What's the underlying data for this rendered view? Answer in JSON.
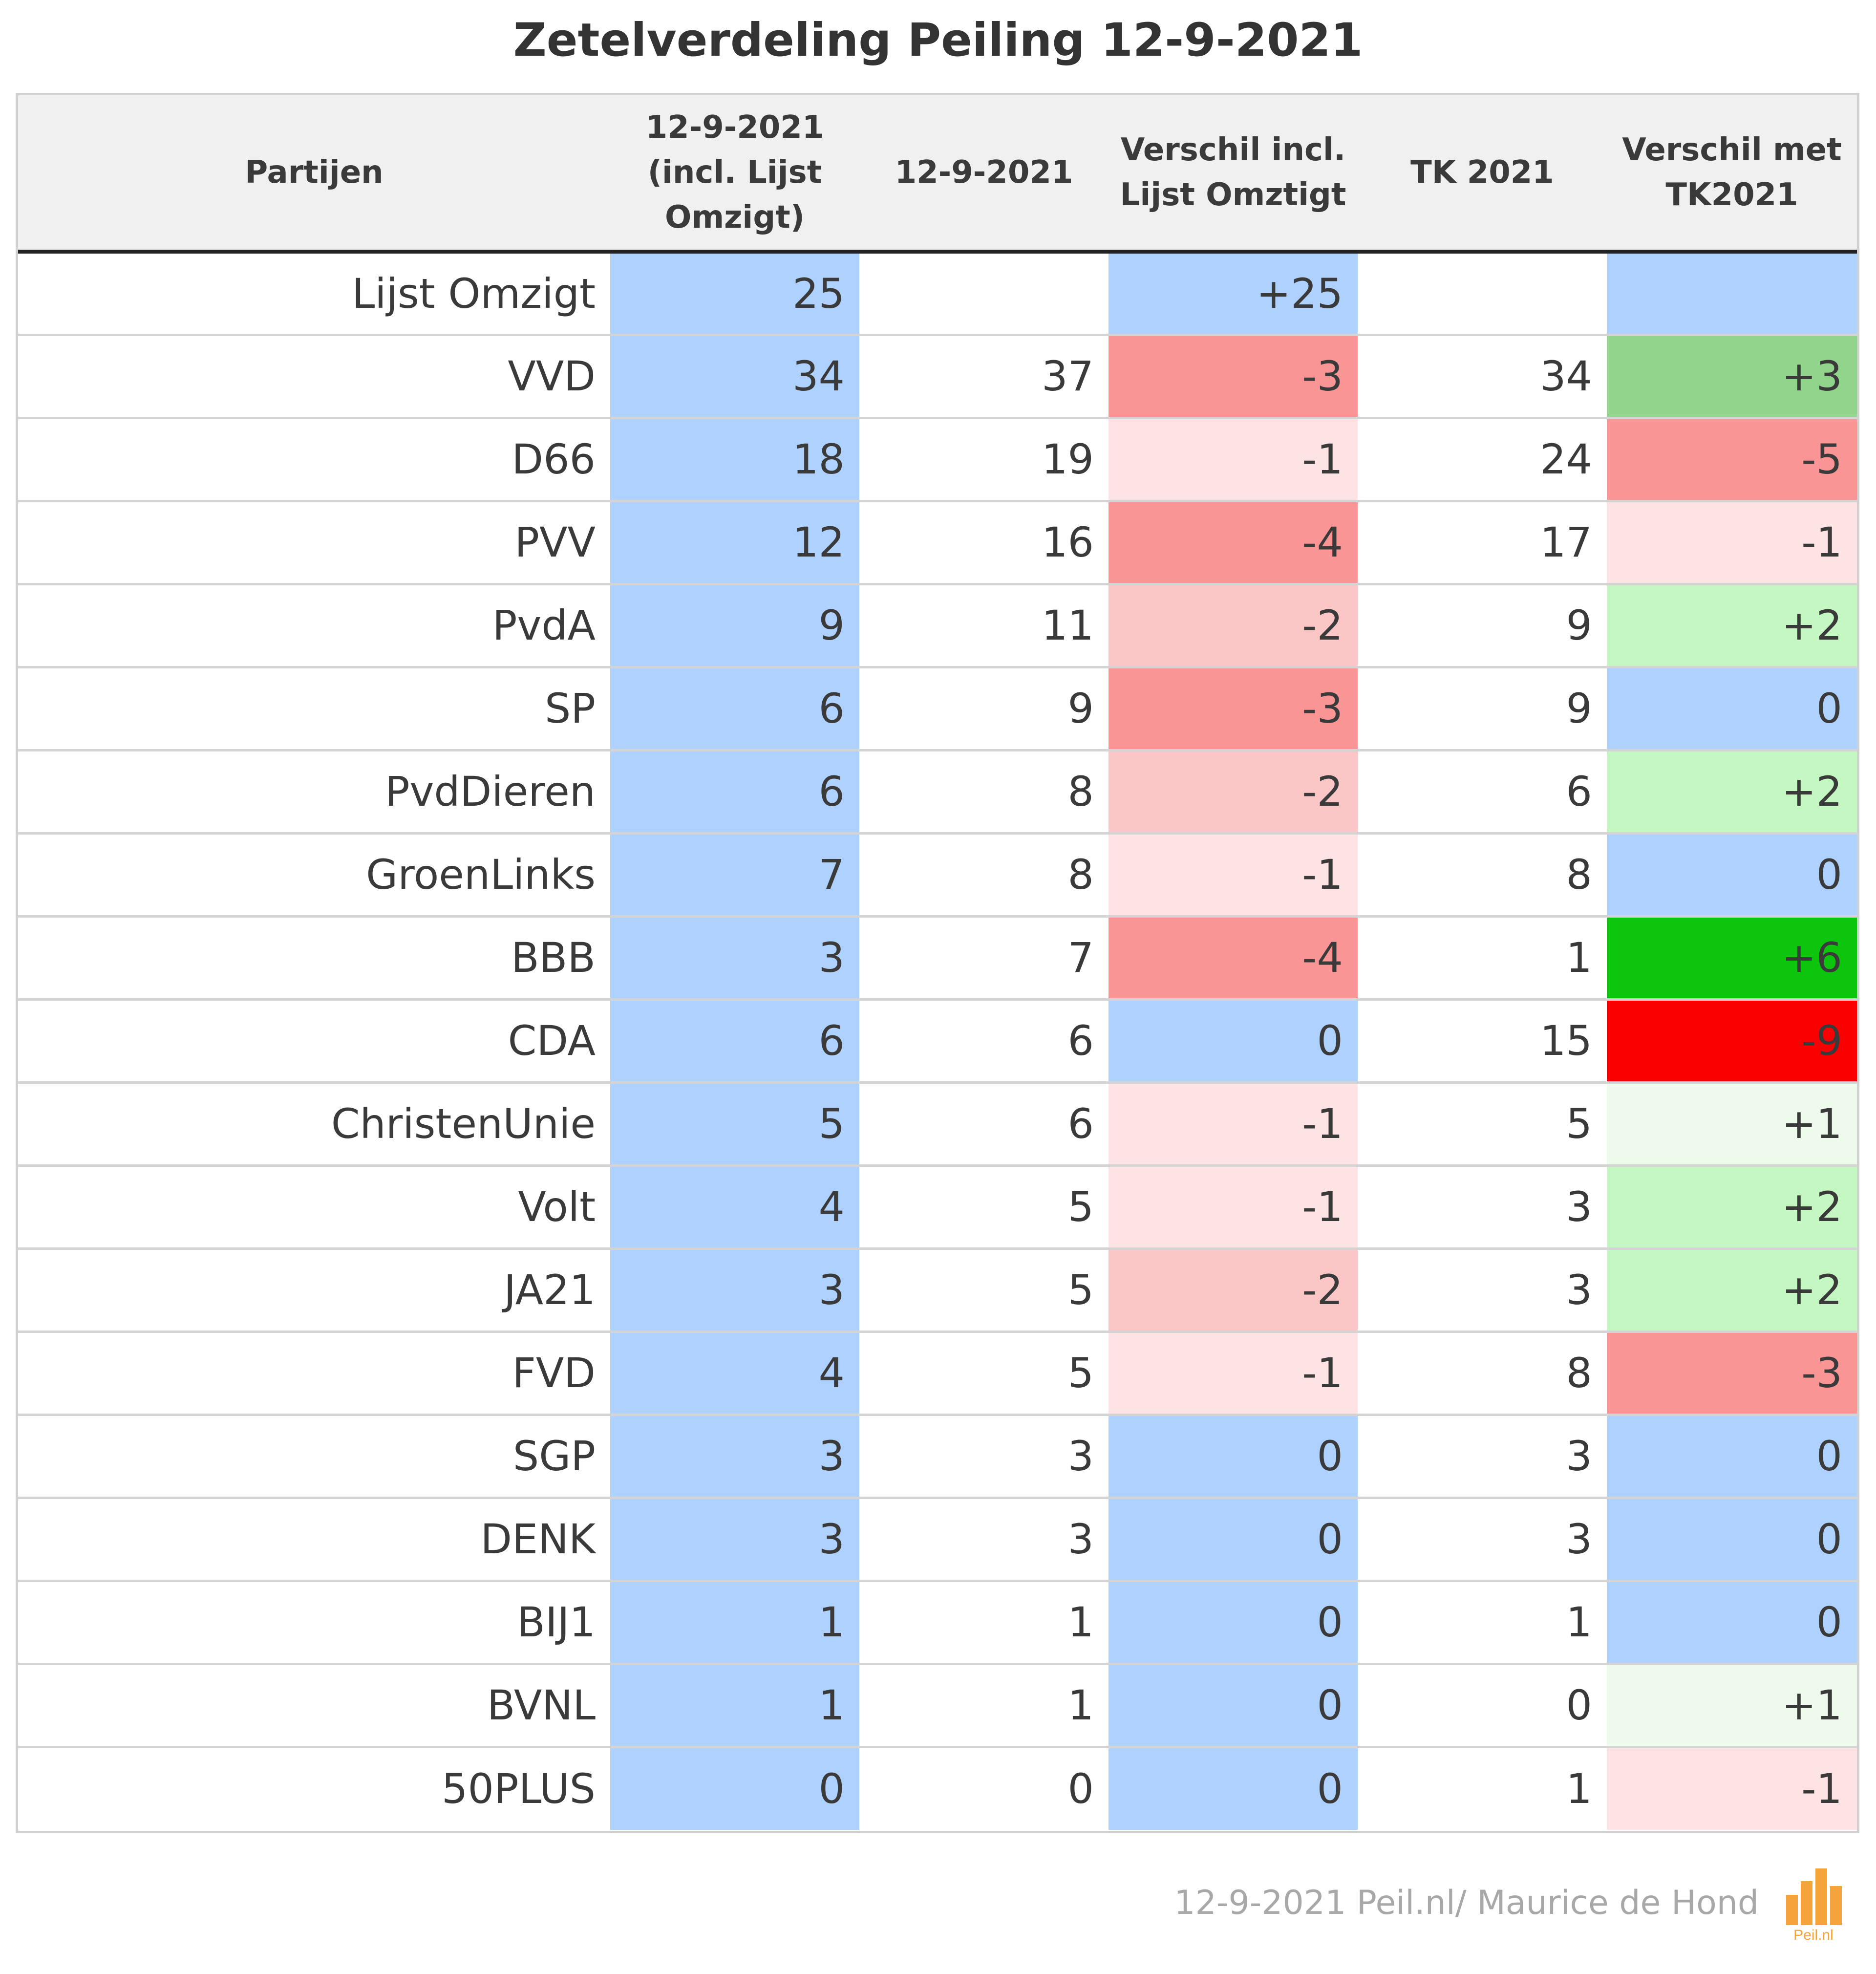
{
  "colors": {
    "blue": "#aed2fd",
    "red_light": "#fde3e3",
    "red_medium": "#fbc6c6",
    "red_strong": "#f99595",
    "red_full": "#fa0000",
    "green_light": "#edfaec",
    "green_medium": "#c5f7c2",
    "green_strong": "#91d48b",
    "green_full": "#0cc50c"
  },
  "chart_data": {
    "type": "table",
    "title": "Zetelverdeling Peiling 12-9-2021",
    "columns": [
      [
        "Partijen"
      ],
      [
        "12-9-2021",
        "(incl. Lijst",
        "Omzigt)"
      ],
      [
        "12-9-2021"
      ],
      [
        "Verschil incl.",
        "Lijst Omztigt"
      ],
      [
        "TK 2021"
      ],
      [
        "Verschil met",
        "TK2021"
      ]
    ],
    "rows": [
      {
        "party": "Lijst Omzigt",
        "incl": "25",
        "poll": "",
        "diff": "+25",
        "tk": "",
        "tkdiff": "",
        "diff_color": "blue",
        "tkdiff_color": "blue"
      },
      {
        "party": "VVD",
        "incl": "34",
        "poll": "37",
        "diff": "-3",
        "tk": "34",
        "tkdiff": "+3",
        "diff_color": "red_strong",
        "tkdiff_color": "green_strong"
      },
      {
        "party": "D66",
        "incl": "18",
        "poll": "19",
        "diff": "-1",
        "tk": "24",
        "tkdiff": "-5",
        "diff_color": "red_light",
        "tkdiff_color": "red_strong"
      },
      {
        "party": "PVV",
        "incl": "12",
        "poll": "16",
        "diff": "-4",
        "tk": "17",
        "tkdiff": "-1",
        "diff_color": "red_strong",
        "tkdiff_color": "red_light"
      },
      {
        "party": "PvdA",
        "incl": "9",
        "poll": "11",
        "diff": "-2",
        "tk": "9",
        "tkdiff": "+2",
        "diff_color": "red_medium",
        "tkdiff_color": "green_medium"
      },
      {
        "party": "SP",
        "incl": "6",
        "poll": "9",
        "diff": "-3",
        "tk": "9",
        "tkdiff": "0",
        "diff_color": "red_strong",
        "tkdiff_color": "blue"
      },
      {
        "party": "PvdDieren",
        "incl": "6",
        "poll": "8",
        "diff": "-2",
        "tk": "6",
        "tkdiff": "+2",
        "diff_color": "red_medium",
        "tkdiff_color": "green_medium"
      },
      {
        "party": "GroenLinks",
        "incl": "7",
        "poll": "8",
        "diff": "-1",
        "tk": "8",
        "tkdiff": "0",
        "diff_color": "red_light",
        "tkdiff_color": "blue"
      },
      {
        "party": "BBB",
        "incl": "3",
        "poll": "7",
        "diff": "-4",
        "tk": "1",
        "tkdiff": "+6",
        "diff_color": "red_strong",
        "tkdiff_color": "green_full"
      },
      {
        "party": "CDA",
        "incl": "6",
        "poll": "6",
        "diff": "0",
        "tk": "15",
        "tkdiff": "-9",
        "diff_color": "blue",
        "tkdiff_color": "red_full"
      },
      {
        "party": "ChristenUnie",
        "incl": "5",
        "poll": "6",
        "diff": "-1",
        "tk": "5",
        "tkdiff": "+1",
        "diff_color": "red_light",
        "tkdiff_color": "green_light"
      },
      {
        "party": "Volt",
        "incl": "4",
        "poll": "5",
        "diff": "-1",
        "tk": "3",
        "tkdiff": "+2",
        "diff_color": "red_light",
        "tkdiff_color": "green_medium"
      },
      {
        "party": "JA21",
        "incl": "3",
        "poll": "5",
        "diff": "-2",
        "tk": "3",
        "tkdiff": "+2",
        "diff_color": "red_medium",
        "tkdiff_color": "green_medium"
      },
      {
        "party": "FVD",
        "incl": "4",
        "poll": "5",
        "diff": "-1",
        "tk": "8",
        "tkdiff": "-3",
        "diff_color": "red_light",
        "tkdiff_color": "red_strong"
      },
      {
        "party": "SGP",
        "incl": "3",
        "poll": "3",
        "diff": "0",
        "tk": "3",
        "tkdiff": "0",
        "diff_color": "blue",
        "tkdiff_color": "blue"
      },
      {
        "party": "DENK",
        "incl": "3",
        "poll": "3",
        "diff": "0",
        "tk": "3",
        "tkdiff": "0",
        "diff_color": "blue",
        "tkdiff_color": "blue"
      },
      {
        "party": "BIJ1",
        "incl": "1",
        "poll": "1",
        "diff": "0",
        "tk": "1",
        "tkdiff": "0",
        "diff_color": "blue",
        "tkdiff_color": "blue"
      },
      {
        "party": "BVNL",
        "incl": "1",
        "poll": "1",
        "diff": "0",
        "tk": "0",
        "tkdiff": "+1",
        "diff_color": "blue",
        "tkdiff_color": "green_light"
      },
      {
        "party": "50PLUS",
        "incl": "0",
        "poll": "0",
        "diff": "0",
        "tk": "1",
        "tkdiff": "-1",
        "diff_color": "blue",
        "tkdiff_color": "red_light"
      }
    ]
  },
  "footer": {
    "credit": "12-9-2021 Peil.nl/ Maurice de Hond",
    "logo_text": "Peil.nl"
  }
}
